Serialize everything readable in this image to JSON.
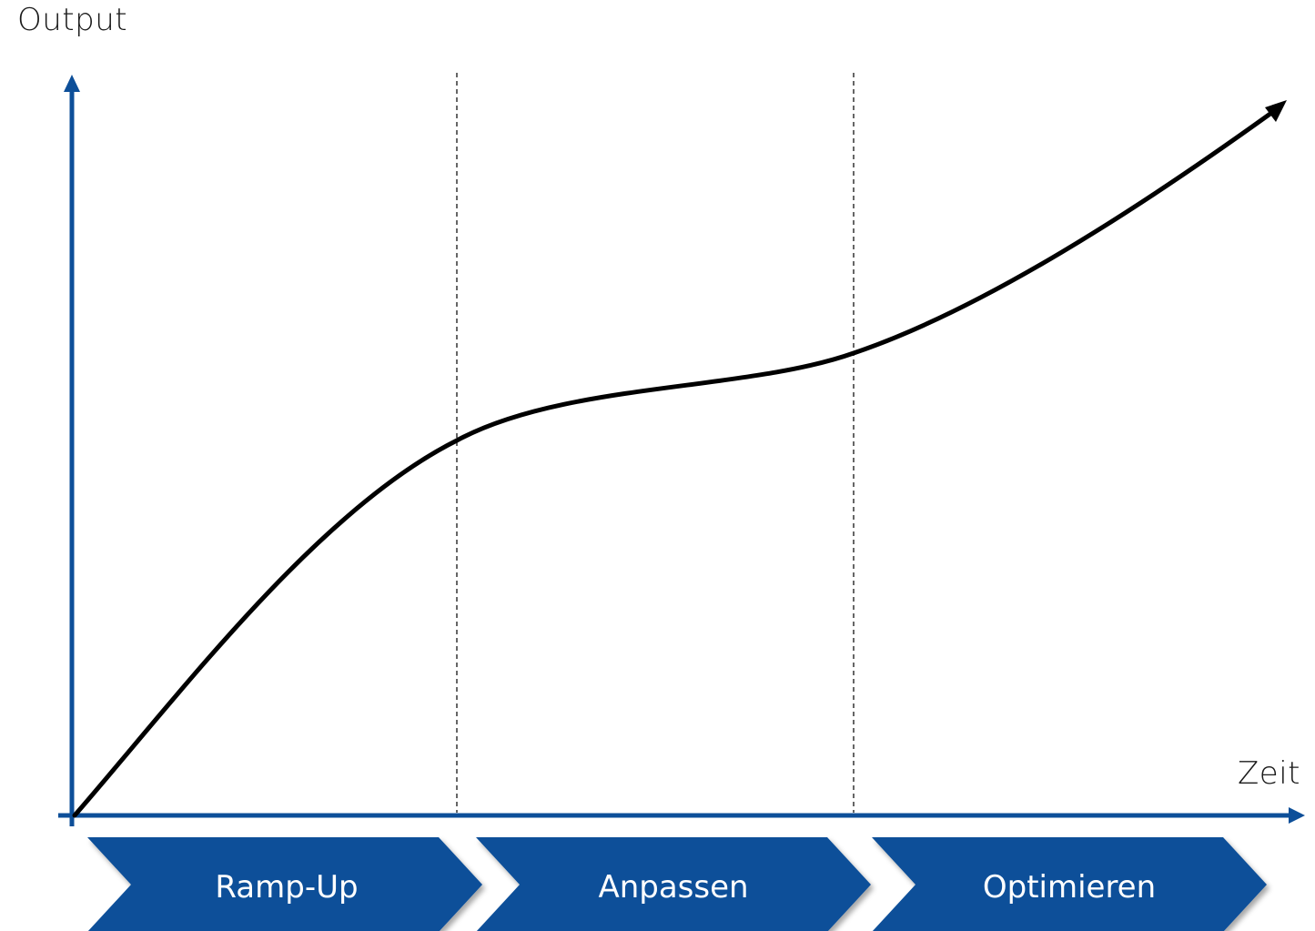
{
  "diagram": {
    "y_axis_label": "Output",
    "x_axis_label": "Zeit",
    "phases": [
      {
        "label": "Ramp-Up"
      },
      {
        "label": "Anpassen"
      },
      {
        "label": "Optimieren"
      }
    ]
  },
  "colors": {
    "axis": "#0d4f99",
    "curve": "#000000",
    "chevron": "#0d4f99",
    "chevron_text": "#ffffff",
    "divider": "#333333"
  }
}
